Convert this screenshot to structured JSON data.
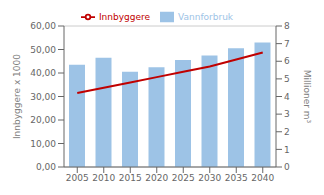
{
  "chart_data": {
    "type": "bar",
    "categories": [
      "2005",
      "2010",
      "2015",
      "2020",
      "2025",
      "2030",
      "2035",
      "2040"
    ],
    "series": [
      {
        "name": "Vannforbruk",
        "type": "bar",
        "color": "#9DC3E6",
        "values": [
          43.5,
          46.5,
          40.5,
          42.5,
          45.5,
          47.5,
          50.5,
          53.0
        ]
      },
      {
        "name": "Innbyggere",
        "type": "line",
        "color": "#C00000",
        "axis": "y2",
        "values": [
          4.2,
          4.5,
          4.8,
          5.1,
          5.4,
          5.7,
          6.1,
          6.5
        ]
      }
    ],
    "y_label": "Innbyggere x 1000",
    "y2_label": "Millioner m³",
    "ylim": [
      0,
      60
    ],
    "yticks": [
      {
        "value": 0,
        "label": "0,00"
      },
      {
        "value": 10,
        "label": "10,00"
      },
      {
        "value": 20,
        "label": "20,00"
      },
      {
        "value": 30,
        "label": "30,00"
      },
      {
        "value": 40,
        "label": "40,00"
      },
      {
        "value": 50,
        "label": "50,00"
      },
      {
        "value": 60,
        "label": "60,00"
      }
    ],
    "y2lim": [
      0,
      8
    ],
    "y2ticks": [
      0,
      1,
      2,
      3,
      4,
      5,
      6,
      7,
      8
    ],
    "grid": true,
    "legend": "top"
  }
}
